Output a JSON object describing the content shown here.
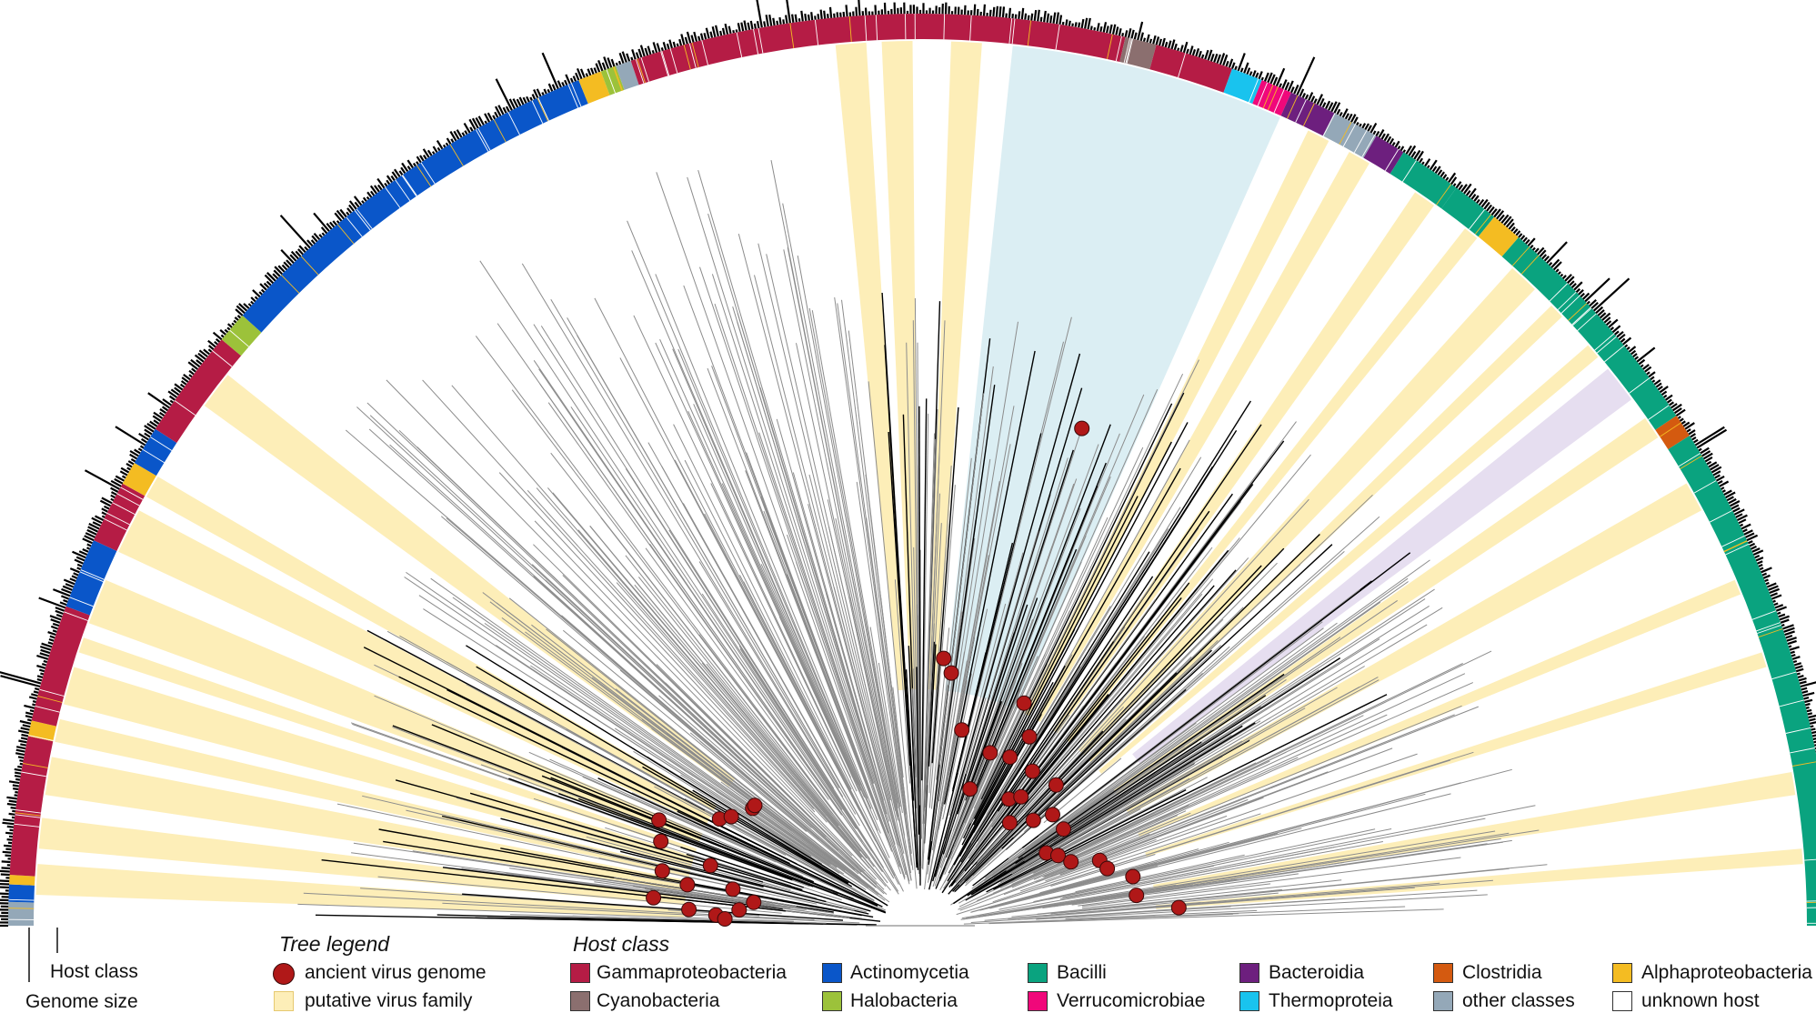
{
  "axis_labels": {
    "host_class": "Host class",
    "genome_size": "Genome size"
  },
  "tree_legend": {
    "title": "Tree legend",
    "items": [
      {
        "label": "ancient virus genome",
        "symbol": "red-circle",
        "color": "#b01818"
      },
      {
        "label": "putative virus family",
        "symbol": "shaded-wedge",
        "color": "#fdeeb8"
      }
    ]
  },
  "host_class_legend": {
    "title": "Host class",
    "items": [
      {
        "label": "Gammaproteobacteria",
        "color": "#b51c45"
      },
      {
        "label": "Actinomycetia",
        "color": "#0a56c9"
      },
      {
        "label": "Bacilli",
        "color": "#0aa37f"
      },
      {
        "label": "Bacteroidia",
        "color": "#6d1f7e"
      },
      {
        "label": "Clostridia",
        "color": "#d45a10"
      },
      {
        "label": "Alphaproteobacteria",
        "color": "#f4bc22"
      },
      {
        "label": "Cyanobacteria",
        "color": "#8b6f6f"
      },
      {
        "label": "Halobacteria",
        "color": "#9cc23a"
      },
      {
        "label": "Verrucomicrobiae",
        "color": "#f0087a"
      },
      {
        "label": "Thermoproteia",
        "color": "#19c3ee"
      },
      {
        "label": "other classes",
        "color": "#94a8b8"
      },
      {
        "label": "unknown host",
        "color": "#ffffff"
      }
    ]
  },
  "colors": {
    "putative_family_band": "#fdeeb8",
    "highlight_blue": "#dbeef3",
    "highlight_purple": "#e6def0",
    "black_branch": "#000000",
    "gray_branch": "#8c8c8c"
  }
}
